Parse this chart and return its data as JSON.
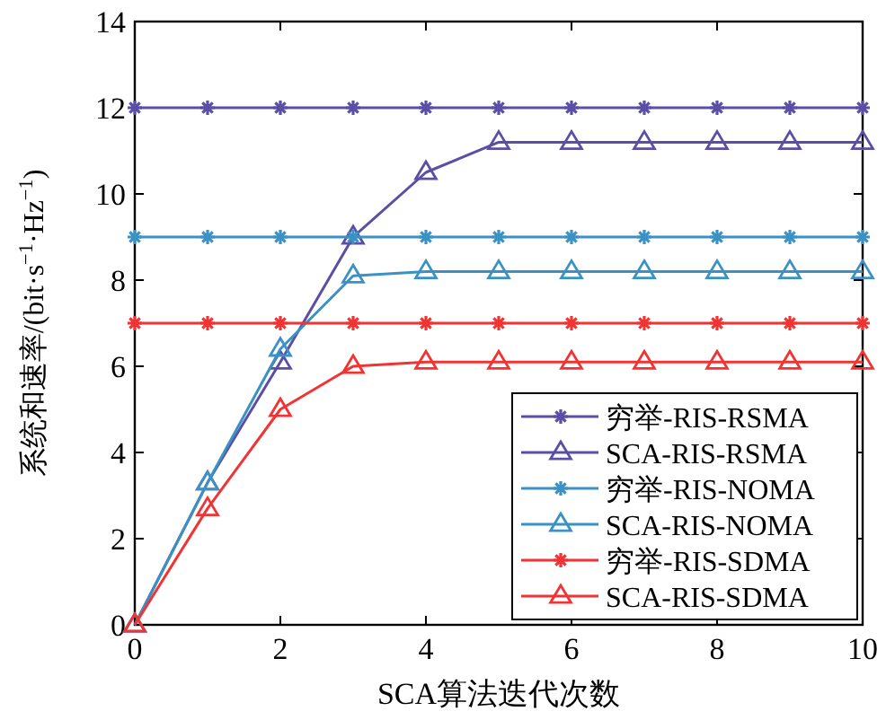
{
  "chart_data": {
    "type": "line",
    "xlabel": "SCA算法迭代次数",
    "ylabel": "系统和速率/(bit·s$^{−1}$·Hz$^{−1}$)",
    "x": [
      0,
      1,
      2,
      3,
      4,
      5,
      6,
      7,
      8,
      9,
      10
    ],
    "xlim": [
      0,
      10
    ],
    "xticks": [
      0,
      2,
      4,
      6,
      8,
      10
    ],
    "ylim": [
      0,
      14
    ],
    "yticks": [
      0,
      2,
      4,
      6,
      8,
      10,
      12,
      14
    ],
    "grid": false,
    "legend": "bottom right",
    "series": [
      {
        "name": "穷举-RIS-RSMA",
        "color": "#5b4ea6",
        "marker": "cross",
        "values": [
          12,
          12,
          12,
          12,
          12,
          12,
          12,
          12,
          12,
          12,
          12
        ]
      },
      {
        "name": "SCA-RIS-RSMA",
        "color": "#5b4ea6",
        "marker": "triangle",
        "values": [
          0,
          3.3,
          6.1,
          9.0,
          10.5,
          11.2,
          11.2,
          11.2,
          11.2,
          11.2,
          11.2
        ]
      },
      {
        "name": "穷举-RIS-NOMA",
        "color": "#3a92c4",
        "marker": "cross",
        "values": [
          9,
          9,
          9,
          9,
          9,
          9,
          9,
          9,
          9,
          9,
          9
        ]
      },
      {
        "name": "SCA-RIS-NOMA",
        "color": "#3a92c4",
        "marker": "triangle",
        "values": [
          0,
          3.3,
          6.4,
          8.1,
          8.2,
          8.2,
          8.2,
          8.2,
          8.2,
          8.2,
          8.2
        ]
      },
      {
        "name": "穷举-RIS-SDMA",
        "color": "#f03434",
        "marker": "cross",
        "values": [
          7,
          7,
          7,
          7,
          7,
          7,
          7,
          7,
          7,
          7,
          7
        ]
      },
      {
        "name": "SCA-RIS-SDMA",
        "color": "#f03434",
        "marker": "triangle",
        "values": [
          0,
          2.7,
          5.0,
          6.0,
          6.1,
          6.1,
          6.1,
          6.1,
          6.1,
          6.1,
          6.1
        ]
      }
    ]
  }
}
